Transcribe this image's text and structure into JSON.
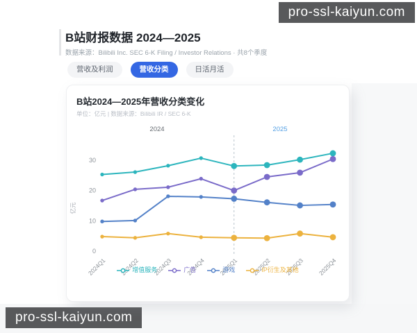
{
  "watermarks": {
    "top": "pro-ssl-kaiyun.com",
    "bottom": "pro-ssl-kaiyun.com"
  },
  "header": {
    "title": "B站财报数据 2024—2025",
    "source": "数据来源：Bilibili Inc. SEC 6-K Filing / Investor Relations · 共8个季度"
  },
  "tabs": [
    {
      "label": "营收及利润",
      "active": false
    },
    {
      "label": "营收分类",
      "active": true
    },
    {
      "label": "日活月活",
      "active": false
    }
  ],
  "card": {
    "title": "B站2024—2025年营收分类变化",
    "subtitle": "单位：亿元 | 数据来源：Bilibili IR / SEC 6-K"
  },
  "chart_data": {
    "type": "line",
    "title": "B站2024—2025年营收分类变化",
    "unit": "亿元",
    "ylabel": "亿元",
    "categories": [
      "2024Q1",
      "2024Q2",
      "2024Q3",
      "2024Q4",
      "2025Q1",
      "2025Q2",
      "2025Q3",
      "2025Q4"
    ],
    "series": [
      {
        "name": "增值服务",
        "color": "#2cb5bd",
        "values": [
          25.3,
          26.1,
          28.2,
          30.7,
          28.1,
          28.4,
          30.2,
          32.3
        ]
      },
      {
        "name": "广告",
        "color": "#7a6bc9",
        "values": [
          16.7,
          20.4,
          21.1,
          23.9,
          20.0,
          24.5,
          25.9,
          30.4
        ]
      },
      {
        "name": "游戏",
        "color": "#5381c8",
        "values": [
          9.8,
          10.1,
          18.1,
          17.9,
          17.3,
          16.1,
          15.1,
          15.4
        ]
      },
      {
        "name": "IP衍生及其他",
        "color": "#ecb23e",
        "values": [
          4.8,
          4.4,
          5.8,
          4.6,
          4.4,
          4.3,
          5.8,
          4.6
        ]
      }
    ],
    "yticks": [
      0,
      10,
      20,
      30
    ],
    "ylim": [
      0,
      33
    ],
    "grid": false,
    "legend_position": "bottom",
    "divider_index": 4,
    "period_labels": [
      {
        "text": "2024",
        "color": "#666b71"
      },
      {
        "text": "2025",
        "color": "#54a0e4"
      }
    ],
    "axis_text_color": "#8b9197",
    "divider_color": "#b9c4cc"
  }
}
